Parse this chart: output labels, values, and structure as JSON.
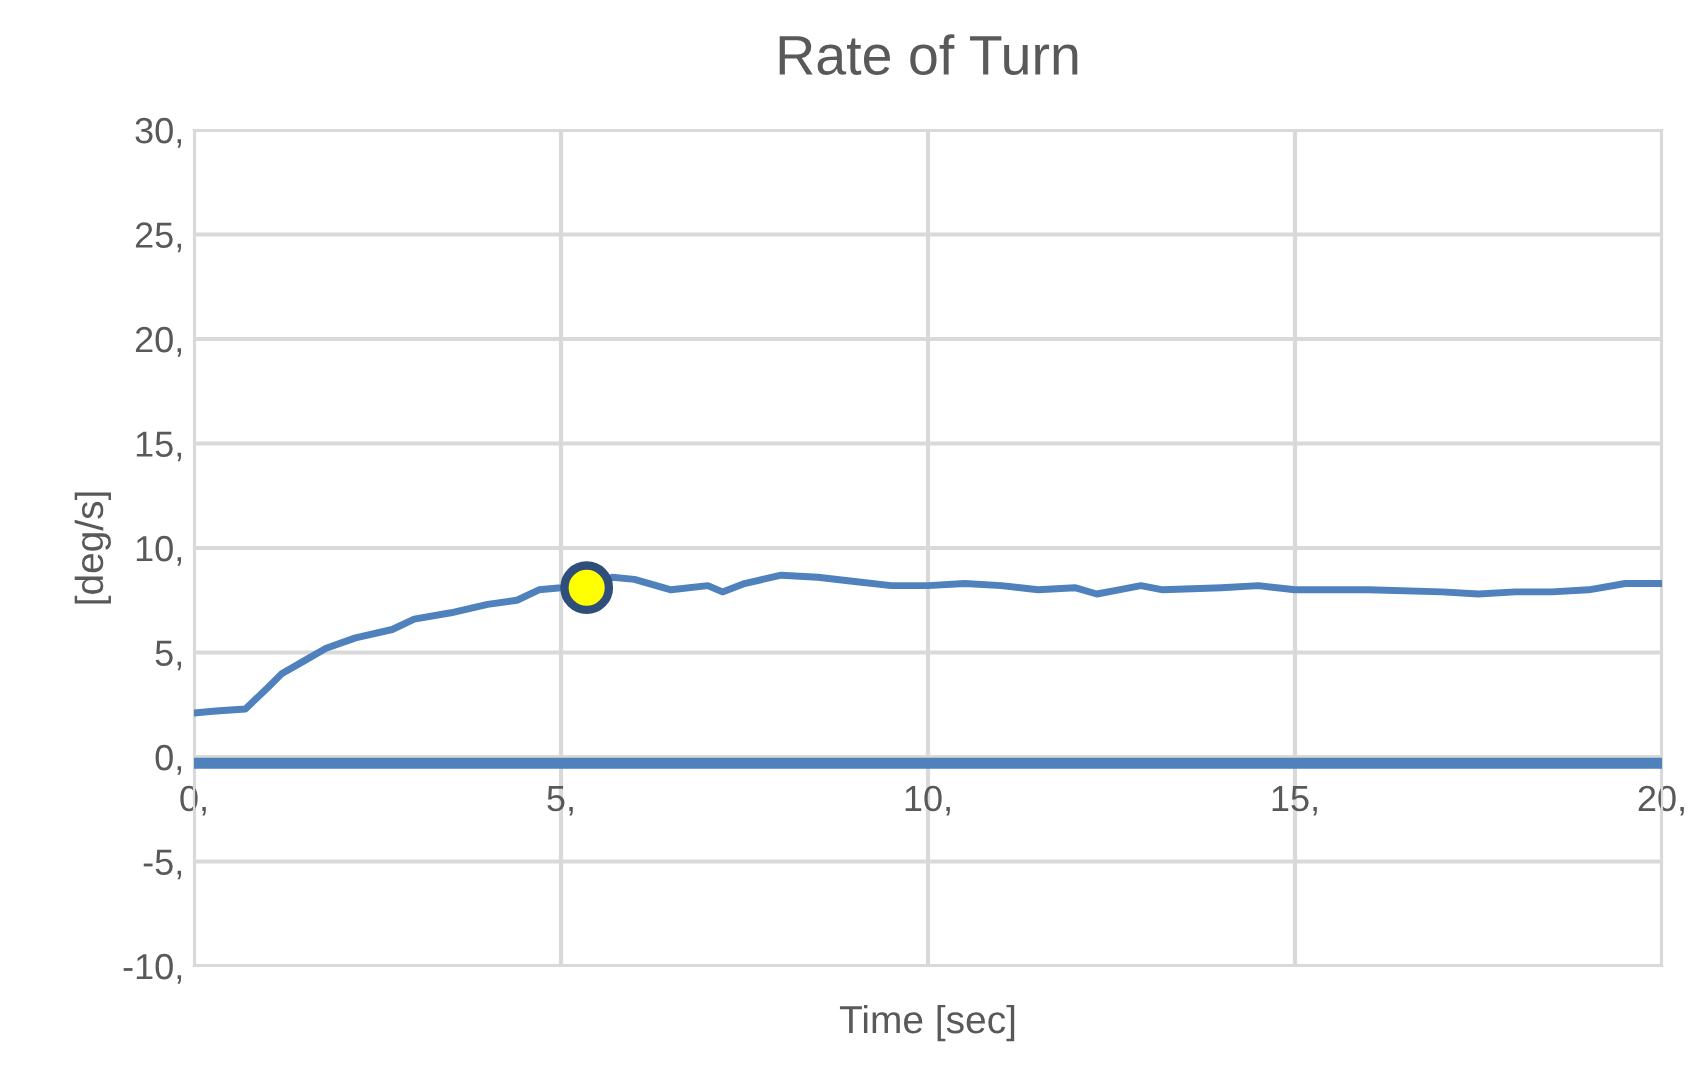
{
  "chart_data": {
    "type": "line",
    "title": "Rate of Turn",
    "xlabel": "Time [sec]",
    "ylabel": "[deg/s]",
    "xlim": [
      0,
      20
    ],
    "ylim": [
      -10,
      30
    ],
    "xticks": [
      {
        "value": 0,
        "label": "0,"
      },
      {
        "value": 5,
        "label": "5,"
      },
      {
        "value": 10,
        "label": "10,"
      },
      {
        "value": 15,
        "label": "15,"
      },
      {
        "value": 20,
        "label": "20,"
      }
    ],
    "yticks": [
      {
        "value": -10,
        "label": "-10,"
      },
      {
        "value": -5,
        "label": "-5,"
      },
      {
        "value": 0,
        "label": "0,"
      },
      {
        "value": 5,
        "label": "5,"
      },
      {
        "value": 10,
        "label": "10,"
      },
      {
        "value": 15,
        "label": "15,"
      },
      {
        "value": 20,
        "label": "20,"
      },
      {
        "value": 25,
        "label": "25,"
      },
      {
        "value": 30,
        "label": "30,"
      }
    ],
    "grid": true,
    "legend": false,
    "series": [
      {
        "color": "#4f81bd",
        "x": [
          0,
          0.3,
          0.7,
          1.0,
          1.2,
          1.5,
          1.8,
          2.2,
          2.7,
          3.0,
          3.5,
          4.0,
          4.4,
          4.7,
          5.0,
          5.4,
          5.7,
          6.0,
          6.5,
          7.0,
          7.2,
          7.5,
          8.0,
          8.5,
          9.0,
          9.5,
          10,
          10.5,
          11,
          11.5,
          12,
          12.3,
          12.6,
          12.9,
          13.2,
          14,
          14.5,
          15,
          15.5,
          16,
          17,
          17.5,
          18,
          18.5,
          19,
          19.5,
          20
        ],
        "values": [
          2.1,
          2.2,
          2.3,
          3.3,
          4.0,
          4.6,
          5.2,
          5.7,
          6.1,
          6.6,
          6.9,
          7.3,
          7.5,
          8.0,
          8.1,
          8.3,
          8.6,
          8.5,
          8.0,
          8.2,
          7.9,
          8.3,
          8.7,
          8.6,
          8.4,
          8.2,
          8.2,
          8.3,
          8.2,
          8.0,
          8.1,
          7.8,
          8.0,
          8.2,
          8.0,
          8.1,
          8.2,
          8.0,
          8.0,
          8.0,
          7.9,
          7.8,
          7.9,
          7.9,
          8.0,
          8.3,
          8.3
        ]
      },
      {
        "color": "#4f81bd",
        "x": [
          0,
          20
        ],
        "values": [
          -0.3,
          -0.3
        ]
      },
      {
        "type": "scatter",
        "color": "#ffff00",
        "marker": "circle",
        "x": [
          5.35
        ],
        "values": [
          8.1
        ]
      }
    ]
  }
}
